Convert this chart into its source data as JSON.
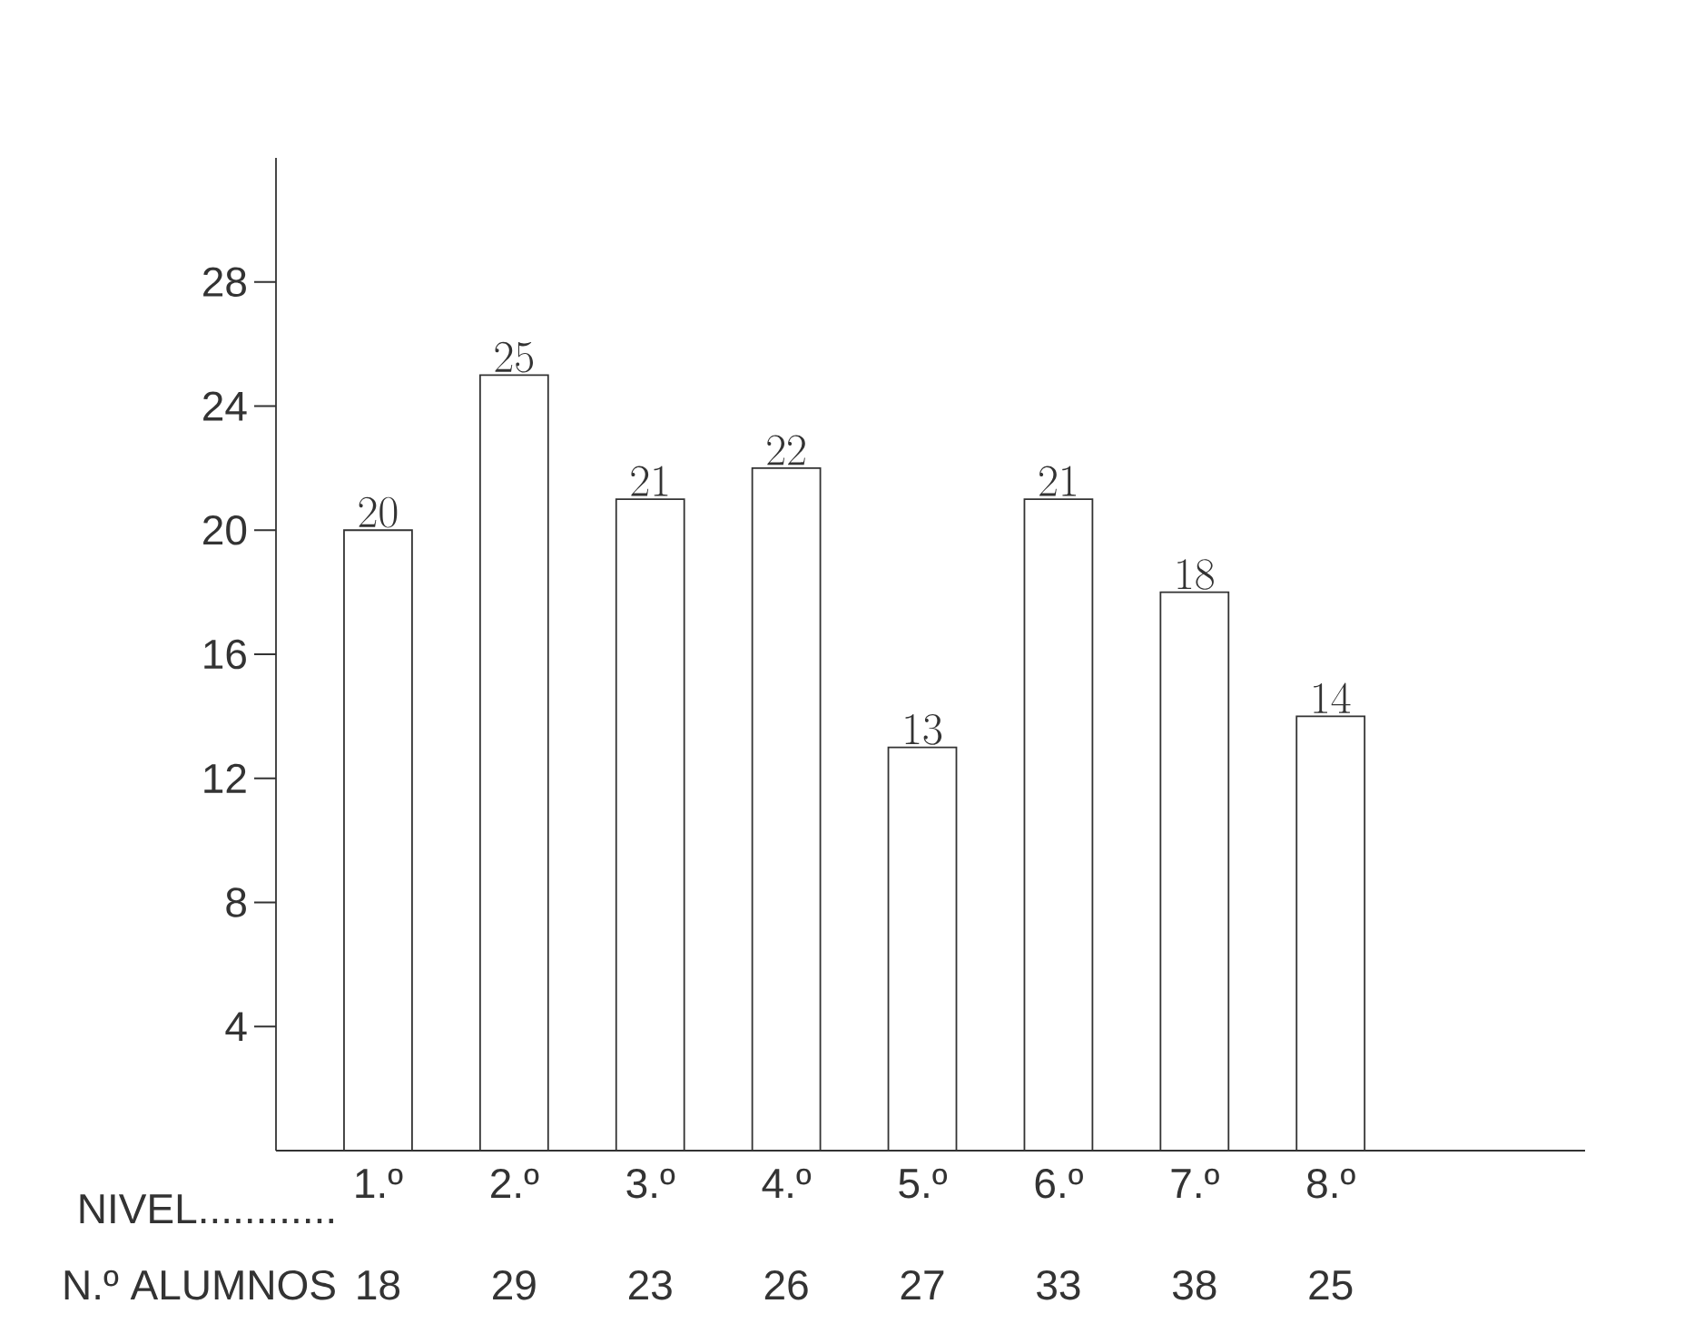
{
  "chart_data": {
    "type": "bar",
    "xlabel": "NIVEL............",
    "categories": [
      "1.º",
      "2.º",
      "3.º",
      "4.º",
      "5.º",
      "6.º",
      "7.º",
      "8.º"
    ],
    "values": [
      20,
      25,
      21,
      22,
      13,
      21,
      18,
      14
    ],
    "color": "#ffffff",
    "data_labels": true,
    "ylim": [
      0,
      32
    ],
    "yticks": [
      4,
      8,
      12,
      16,
      20,
      24,
      28
    ],
    "annotations": [
      "N.º ALUMNOS",
      "18",
      "29",
      "23",
      "26",
      "27",
      "33",
      "38",
      "25"
    ]
  }
}
